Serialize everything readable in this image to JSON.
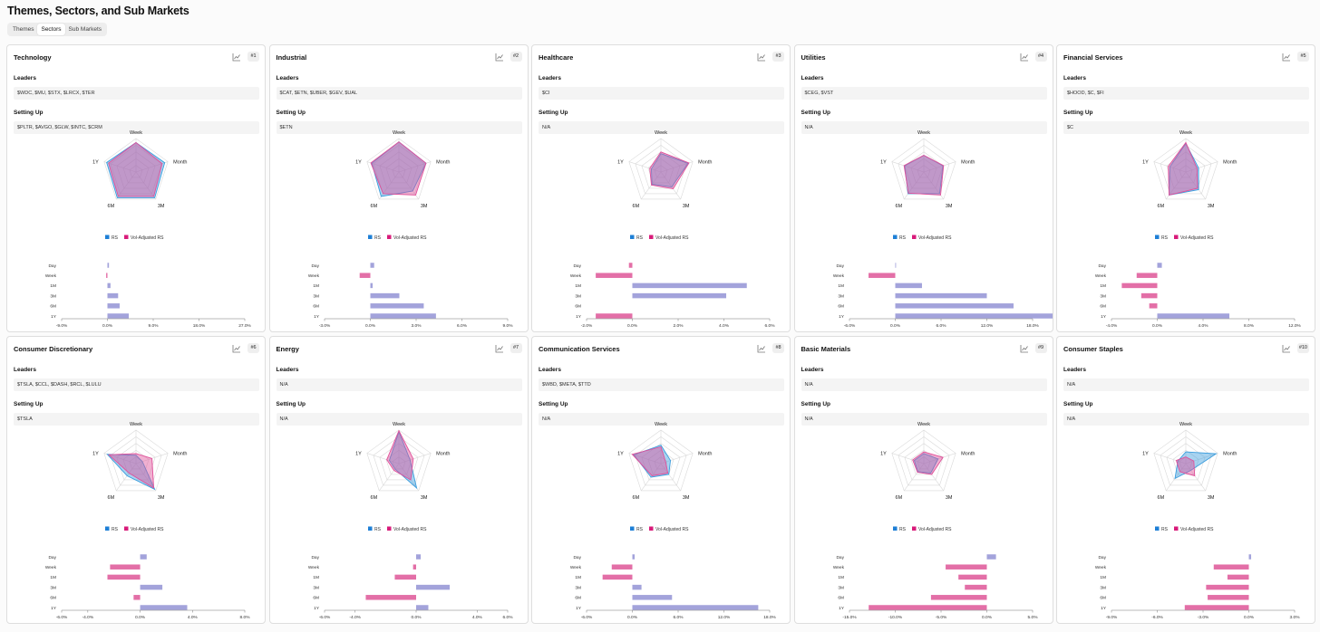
{
  "page_title": "Themes, Sectors, and Sub Markets",
  "tabs": [
    "Themes",
    "Sectors",
    "Sub Markets"
  ],
  "active_tab": "Sectors",
  "labels": {
    "leaders": "Leaders",
    "setting_up": "Setting Up"
  },
  "legend": {
    "rs": "RS",
    "vol": "Vol-Adjusted RS"
  },
  "colors": {
    "rs": "#3b9ddd",
    "vol": "#e0509a",
    "positive_bar": "#a3a3db",
    "negative_bar": "#e36fa7"
  },
  "radar_axes": [
    "Week",
    "Month",
    "3M",
    "6M",
    "1Y"
  ],
  "bar_rows": [
    "Day",
    "Week",
    "1M",
    "3M",
    "6M",
    "1Y"
  ],
  "sectors": [
    {
      "name": "Technology",
      "rank": "#1",
      "leaders": "$WDC, $MU, $STX, $LRCX, $TER",
      "setting_up": "$PLTR, $AVGO, $GLW, $INTC, $CRM",
      "radar": {
        "rs": [
          0.88,
          0.9,
          0.95,
          0.95,
          0.92
        ],
        "vol": [
          0.88,
          0.82,
          0.9,
          0.9,
          0.86
        ]
      },
      "chart_data": {
        "type": "bar",
        "categories": [
          "Day",
          "Week",
          "1M",
          "3M",
          "6M",
          "1Y"
        ],
        "values": [
          0.3,
          -0.25,
          0.6,
          2.1,
          2.4,
          4.2
        ],
        "ticks": [
          "-9.0%",
          "0.0%",
          "9.0%",
          "18.0%",
          "27.0%"
        ]
      }
    },
    {
      "name": "Industrial",
      "rank": "#2",
      "leaders": "$CAT, $ETN, $UBER, $GEV, $UAL",
      "setting_up": "$ETN",
      "radar": {
        "rs": [
          0.9,
          0.85,
          0.7,
          0.9,
          0.85
        ],
        "vol": [
          0.9,
          0.85,
          0.85,
          0.8,
          0.88
        ]
      },
      "chart_data": {
        "type": "bar",
        "categories": [
          "Day",
          "Week",
          "1M",
          "3M",
          "6M",
          "1Y"
        ],
        "values": [
          0.25,
          -0.7,
          0.15,
          1.9,
          3.5,
          4.3
        ],
        "ticks": [
          "-3.0%",
          "0.0%",
          "3.0%",
          "6.0%",
          "9.0%"
        ]
      }
    },
    {
      "name": "Healthcare",
      "rank": "#3",
      "leaders": "$CI",
      "setting_up": "N/A",
      "radar": {
        "rs": [
          0.55,
          0.85,
          0.55,
          0.45,
          0.3
        ],
        "vol": [
          0.6,
          0.88,
          0.62,
          0.48,
          0.35
        ]
      },
      "chart_data": {
        "type": "bar",
        "categories": [
          "Day",
          "Week",
          "1M",
          "3M",
          "6M",
          "1Y"
        ],
        "values": [
          -0.15,
          -1.6,
          5.0,
          4.1,
          0,
          -1.6
        ],
        "ticks": [
          "-2.0%",
          "0.0%",
          "2.0%",
          "4.0%",
          "6.0%"
        ]
      }
    },
    {
      "name": "Utilities",
      "rank": "#4",
      "leaders": "$CEG, $VST",
      "setting_up": "N/A",
      "radar": {
        "rs": [
          0.5,
          0.6,
          0.8,
          0.8,
          0.6
        ],
        "vol": [
          0.5,
          0.62,
          0.85,
          0.78,
          0.62
        ]
      },
      "chart_data": {
        "type": "bar",
        "categories": [
          "Day",
          "Week",
          "1M",
          "3M",
          "6M",
          "1Y"
        ],
        "values": [
          0.1,
          -3.5,
          3.5,
          12.0,
          15.5,
          22.5
        ],
        "ticks": [
          "-6.0%",
          "0.0%",
          "6.0%",
          "12.0%",
          "18.0%"
        ]
      }
    },
    {
      "name": "Financial Services",
      "rank": "#5",
      "leaders": "$HOOD, $C, $FI",
      "setting_up": "$C",
      "radar": {
        "rs": [
          0.85,
          0.4,
          0.65,
          0.85,
          0.5
        ],
        "vol": [
          0.88,
          0.35,
          0.6,
          0.85,
          0.55
        ]
      },
      "chart_data": {
        "type": "bar",
        "categories": [
          "Day",
          "Week",
          "1M",
          "3M",
          "6M",
          "1Y"
        ],
        "values": [
          0.4,
          -1.8,
          -3.1,
          -1.4,
          -0.7,
          6.3
        ],
        "ticks": [
          "-4.0%",
          "0.0%",
          "4.0%",
          "8.0%",
          "12.0%"
        ]
      }
    },
    {
      "name": "Consumer Discretionary",
      "rank": "#6",
      "leaders": "$TSLA, $CCL, $DASH, $RCL, $LULU",
      "setting_up": "$TSLA",
      "radar": {
        "rs": [
          0.25,
          0.2,
          0.95,
          0.45,
          0.9
        ],
        "vol": [
          0.3,
          0.5,
          0.9,
          0.35,
          0.85
        ]
      },
      "chart_data": {
        "type": "bar",
        "categories": [
          "Day",
          "Week",
          "1M",
          "3M",
          "6M",
          "1Y"
        ],
        "values": [
          0.5,
          -2.3,
          -2.5,
          1.7,
          -0.5,
          3.6
        ],
        "ticks": [
          "-6.0%",
          "-4.0%",
          "0.0%",
          "4.0%",
          "8.0%"
        ]
      }
    },
    {
      "name": "Energy",
      "rank": "#7",
      "leaders": "N/A",
      "setting_up": "N/A",
      "radar": {
        "rs": [
          0.95,
          0.35,
          0.9,
          0.2,
          0.3
        ],
        "vol": [
          0.98,
          0.45,
          0.6,
          0.25,
          0.38
        ]
      },
      "chart_data": {
        "type": "bar",
        "categories": [
          "Day",
          "Week",
          "1M",
          "3M",
          "6M",
          "1Y"
        ],
        "values": [
          0.3,
          -0.2,
          -1.4,
          2.2,
          -3.3,
          0.8
        ],
        "ticks": [
          "-6.0%",
          "-4.0%",
          "0.0%",
          "4.0%",
          "6.0%"
        ]
      }
    },
    {
      "name": "Communication Services",
      "rank": "#8",
      "leaders": "$WBD, $META, $TTD",
      "setting_up": "N/A",
      "radar": {
        "rs": [
          0.55,
          0.3,
          0.4,
          0.5,
          0.85
        ],
        "vol": [
          0.5,
          0.15,
          0.35,
          0.45,
          0.9
        ]
      },
      "chart_data": {
        "type": "bar",
        "categories": [
          "Day",
          "Week",
          "1M",
          "3M",
          "6M",
          "1Y"
        ],
        "values": [
          0.3,
          -2.7,
          -3.9,
          1.2,
          5.2,
          16.5
        ],
        "ticks": [
          "-6.0%",
          "0.0%",
          "6.0%",
          "12.0%",
          "18.0%"
        ]
      }
    },
    {
      "name": "Basic Materials",
      "rank": "#9",
      "leaders": "N/A",
      "setting_up": "N/A",
      "radar": {
        "rs": [
          0.3,
          0.45,
          0.35,
          0.3,
          0.3
        ],
        "vol": [
          0.35,
          0.6,
          0.4,
          0.32,
          0.35
        ]
      },
      "chart_data": {
        "type": "bar",
        "categories": [
          "Day",
          "Week",
          "1M",
          "3M",
          "6M",
          "1Y"
        ],
        "values": [
          1.0,
          -4.5,
          -3.1,
          -2.4,
          -6.1,
          -12.9
        ],
        "ticks": [
          "-15.0%",
          "-10.0%",
          "-5.0%",
          "0.0%",
          "5.0%"
        ]
      }
    },
    {
      "name": "Consumer Staples",
      "rank": "#10",
      "leaders": "N/A",
      "setting_up": "N/A",
      "radar": {
        "rs": [
          0.35,
          0.95,
          0.25,
          0.55,
          0.25
        ],
        "vol": [
          0.2,
          0.25,
          0.45,
          0.3,
          0.3
        ]
      },
      "chart_data": {
        "type": "bar",
        "categories": [
          "Day",
          "Week",
          "1M",
          "3M",
          "6M",
          "1Y"
        ],
        "values": [
          0.15,
          -2.3,
          -1.4,
          -2.8,
          -2.7,
          -4.2
        ],
        "ticks": [
          "-9.0%",
          "-6.0%",
          "-3.0%",
          "0.0%",
          "3.0%"
        ]
      }
    }
  ]
}
